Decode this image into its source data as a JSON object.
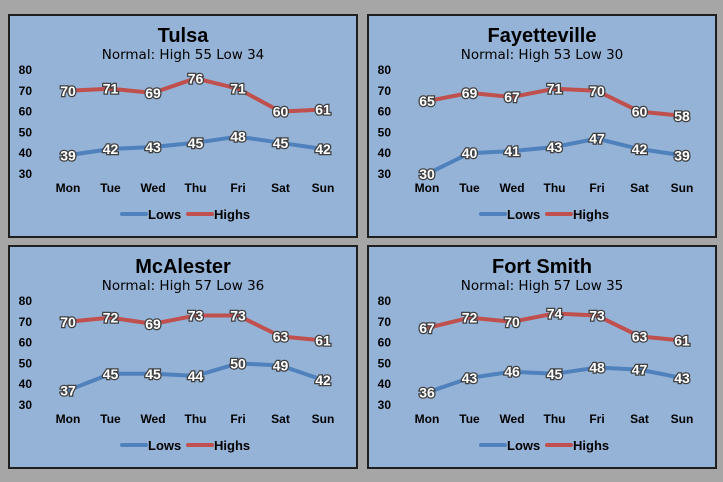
{
  "colors": {
    "lows": "#4f81bd",
    "highs": "#c0504d",
    "panel_bg": "#95b3d7",
    "page_bg": "#a6a6a6"
  },
  "chart_data": [
    {
      "type": "line",
      "title": "Tulsa",
      "subtitle": "Normal: High 55 Low 34",
      "categories": [
        "Mon",
        "Tue",
        "Wed",
        "Thu",
        "Fri",
        "Sat",
        "Sun"
      ],
      "ylim": [
        30,
        80
      ],
      "yticks": [
        30,
        40,
        50,
        60,
        70,
        80
      ],
      "series": [
        {
          "name": "Lows",
          "values": [
            39,
            42,
            43,
            45,
            48,
            45,
            42
          ]
        },
        {
          "name": "Highs",
          "values": [
            70,
            71,
            69,
            76,
            71,
            60,
            61
          ]
        }
      ],
      "legend": "bottom",
      "grid": false
    },
    {
      "type": "line",
      "title": "Fayetteville",
      "subtitle": "Normal: High 53 Low 30",
      "categories": [
        "Mon",
        "Tue",
        "Wed",
        "Thu",
        "Fri",
        "Sat",
        "Sun"
      ],
      "ylim": [
        30,
        80
      ],
      "yticks": [
        30,
        40,
        50,
        60,
        70,
        80
      ],
      "series": [
        {
          "name": "Lows",
          "values": [
            30,
            40,
            41,
            43,
            47,
            42,
            39
          ]
        },
        {
          "name": "Highs",
          "values": [
            65,
            69,
            67,
            71,
            70,
            60,
            58
          ]
        }
      ],
      "legend": "bottom",
      "grid": false
    },
    {
      "type": "line",
      "title": "McAlester",
      "subtitle": "Normal: High 57 Low 36",
      "categories": [
        "Mon",
        "Tue",
        "Wed",
        "Thu",
        "Fri",
        "Sat",
        "Sun"
      ],
      "ylim": [
        30,
        80
      ],
      "yticks": [
        30,
        40,
        50,
        60,
        70,
        80
      ],
      "series": [
        {
          "name": "Lows",
          "values": [
            37,
            45,
            45,
            44,
            50,
            49,
            42
          ]
        },
        {
          "name": "Highs",
          "values": [
            70,
            72,
            69,
            73,
            73,
            63,
            61
          ]
        }
      ],
      "legend": "bottom",
      "grid": false
    },
    {
      "type": "line",
      "title": "Fort Smith",
      "subtitle": "Normal: High 57 Low 35",
      "categories": [
        "Mon",
        "Tue",
        "Wed",
        "Thu",
        "Fri",
        "Sat",
        "Sun"
      ],
      "ylim": [
        30,
        80
      ],
      "yticks": [
        30,
        40,
        50,
        60,
        70,
        80
      ],
      "series": [
        {
          "name": "Lows",
          "values": [
            36,
            43,
            46,
            45,
            48,
            47,
            43
          ]
        },
        {
          "name": "Highs",
          "values": [
            67,
            72,
            70,
            74,
            73,
            63,
            61
          ]
        }
      ],
      "legend": "bottom",
      "grid": false
    }
  ]
}
